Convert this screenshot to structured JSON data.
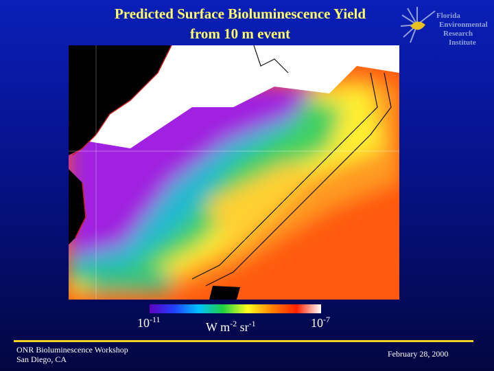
{
  "slide": {
    "title": [
      "Predicted Surface Bioluminescence Yield",
      "from 10 m event"
    ],
    "logo": [
      "Florida",
      "Environmental",
      "Research",
      "Institute"
    ],
    "colorbar": {
      "min": {
        "base": "10",
        "exponent": "-11"
      },
      "unit": [
        {
          "base": "W m",
          "exponent": "-2"
        },
        {
          "base": " sr",
          "exponent": "-1"
        }
      ],
      "max": {
        "base": "10",
        "exponent": "-7"
      }
    },
    "footer": {
      "left": [
        "ONR Bioluminescence Workshop",
        "San Diego, CA"
      ],
      "right": "February 28, 2000"
    }
  }
}
